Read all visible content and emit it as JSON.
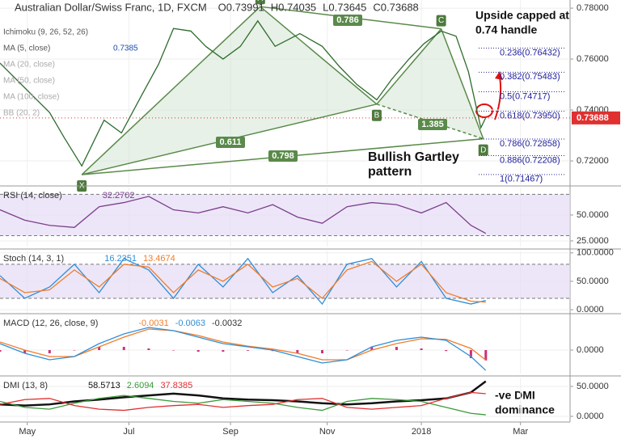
{
  "chart_data": [
    {
      "type": "line",
      "title": "Australian Dollar/Swiss Franc, 1D, FXCM",
      "ohlc": [
        "O0.73991",
        "H0.74035",
        "L0.73645",
        "C0.73688"
      ],
      "indicators": [
        "Ichimoku (9, 26, 52, 26)",
        "MA (5, close)",
        "0.7385",
        "MA (20, close)",
        "MA (50, close)",
        "MA (100, close)",
        "BB (20, 2)"
      ],
      "xlim": [
        0,
        230
      ],
      "xticks": [
        {
          "value": 11,
          "label": "May"
        },
        {
          "value": 52,
          "label": "Jul"
        },
        {
          "value": 93,
          "label": "Sep"
        },
        {
          "value": 132,
          "label": "Nov"
        },
        {
          "value": 170,
          "label": "2018"
        },
        {
          "value": 210,
          "label": "Mar"
        }
      ],
      "ylim": [
        0.7108,
        0.7832
      ],
      "yticks": [
        {
          "value": 0.72,
          "label": "0.72000"
        },
        {
          "value": 0.74,
          "label": "0.74000"
        },
        {
          "value": 0.76,
          "label": "0.76000"
        },
        {
          "value": 0.78,
          "label": "0.78000"
        }
      ],
      "x": [
        0,
        10,
        20,
        26,
        33,
        42,
        49,
        57,
        64,
        70,
        77,
        83,
        90,
        97,
        104,
        111,
        121,
        130,
        137,
        144,
        152,
        158,
        165,
        171,
        178,
        184,
        189,
        194,
        196
      ],
      "series": [
        {
          "color": "#2e6b2e",
          "values": [
            0.7584,
            0.7487,
            0.739,
            0.729,
            0.718,
            0.736,
            0.731,
            0.7455,
            0.758,
            0.772,
            0.771,
            0.765,
            0.76,
            0.765,
            0.775,
            0.765,
            0.77,
            0.765,
            0.757,
            0.75,
            0.744,
            0.752,
            0.76,
            0.766,
            0.771,
            0.769,
            0.755,
            0.733,
            0.737
          ]
        }
      ],
      "pattern": {
        "labels": [
          "X",
          "A",
          "B",
          "C",
          "D"
        ],
        "x": [
          33,
          105,
          152,
          178,
          195
        ],
        "y": [
          0.7146,
          0.7806,
          0.7423,
          0.7719,
          0.7287
        ]
      },
      "ratio_labels": [
        "0.611",
        "0.798",
        "1.385",
        "0.786"
      ],
      "fib_levels": [
        {
          "value": 0.76432,
          "label": "0.236(0.76432)"
        },
        {
          "value": 0.75483,
          "label": "0.382(0.75483)"
        },
        {
          "value": 0.74717,
          "label": "0.5(0.74717)"
        },
        {
          "value": 0.7395,
          "label": "0.618(0.73950)"
        },
        {
          "value": 0.72858,
          "label": "0.786(0.72858)"
        },
        {
          "value": 0.72208,
          "label": "0.886(0.72208)"
        },
        {
          "value": 0.71467,
          "label": "1(0.71467)"
        }
      ],
      "last": {
        "value": 0.73688,
        "label": "0.73688"
      },
      "annotations": [
        [
          "Upside capped at",
          "0.74 handle"
        ],
        [
          "Bullish Gartley",
          "pattern"
        ],
        [
          "-ve DMI",
          "dominance"
        ]
      ]
    },
    {
      "type": "line",
      "title": "RSI (14, close)",
      "readouts": [
        "32.2702"
      ],
      "ylim": [
        19.5,
        76.5
      ],
      "yticks": [
        {
          "value": 25,
          "label": "25.0000"
        },
        {
          "value": 50,
          "label": "50.0000"
        }
      ],
      "band": [
        30,
        70
      ],
      "x": [
        0,
        10,
        20,
        30,
        40,
        50,
        60,
        70,
        80,
        90,
        100,
        110,
        120,
        130,
        140,
        150,
        160,
        170,
        180,
        190,
        196
      ],
      "series": [
        {
          "color": "#7b3f8c",
          "values": [
            55,
            45,
            40,
            38,
            58,
            62,
            68,
            55,
            52,
            58,
            52,
            60,
            48,
            42,
            58,
            62,
            60,
            52,
            62,
            40,
            32.27
          ]
        }
      ]
    },
    {
      "type": "line",
      "title": "Stoch (14, 3, 1)",
      "readouts": [
        "16.2351",
        "13.4674"
      ],
      "ylim": [
        -7,
        104
      ],
      "yticks": [
        {
          "value": 0,
          "label": "0.0000"
        },
        {
          "value": 50,
          "label": "50.0000"
        },
        {
          "value": 100,
          "label": "100.0000"
        }
      ],
      "band": [
        20,
        80
      ],
      "x": [
        0,
        10,
        20,
        30,
        40,
        50,
        60,
        70,
        80,
        90,
        100,
        110,
        120,
        130,
        140,
        150,
        160,
        170,
        180,
        190,
        196
      ],
      "series": [
        {
          "color": "#2f8fd8",
          "values": [
            60,
            20,
            40,
            80,
            30,
            90,
            70,
            20,
            80,
            40,
            90,
            30,
            60,
            10,
            80,
            90,
            40,
            85,
            20,
            10,
            16.2351
          ]
        },
        {
          "color": "#f07d2a",
          "values": [
            55,
            30,
            35,
            70,
            40,
            80,
            75,
            30,
            70,
            50,
            80,
            40,
            55,
            20,
            70,
            85,
            50,
            80,
            30,
            15,
            13.4674
          ]
        }
      ]
    },
    {
      "type": "line",
      "title": "MACD (12, 26, close, 9)",
      "readouts": [
        "-0.0031",
        "-0.0063",
        "-0.0032"
      ],
      "ylim": [
        -0.00725,
        0.01075
      ],
      "yticks": [
        {
          "value": 0,
          "label": "0.0000"
        }
      ],
      "x": [
        0,
        10,
        20,
        30,
        40,
        50,
        60,
        70,
        80,
        90,
        100,
        110,
        120,
        130,
        140,
        150,
        160,
        170,
        180,
        190,
        196
      ],
      "histogram": {
        "color": "#d0307a",
        "values": [
          -0.0005,
          -0.001,
          -0.001,
          0,
          0.001,
          0.001,
          0.0005,
          0,
          -0.0005,
          -0.0005,
          -0.0002,
          -0.0003,
          -0.001,
          -0.001,
          0,
          0.001,
          0.001,
          0.0005,
          -0.0003,
          -0.0025,
          -0.0032
        ]
      },
      "series": [
        {
          "color": "#f07d2a",
          "values": [
            0.0025,
            0,
            -0.002,
            -0.002,
            0.001,
            0.004,
            0.0065,
            0.006,
            0.0045,
            0.0025,
            0.0012,
            0.0003,
            -0.001,
            -0.003,
            -0.003,
            0,
            0.002,
            0.0035,
            0.0033,
            0.0005,
            -0.0031
          ]
        },
        {
          "color": "#2f8fd8",
          "values": [
            0.002,
            -0.001,
            -0.003,
            -0.002,
            0.002,
            0.005,
            0.007,
            0.006,
            0.004,
            0.002,
            0.001,
            0,
            -0.002,
            -0.004,
            -0.003,
            0.001,
            0.003,
            0.004,
            0.003,
            -0.002,
            -0.0063
          ]
        }
      ]
    },
    {
      "type": "line",
      "title": "DMI (13, 8)",
      "readouts": [
        "58.5713",
        "2.6094",
        "37.8385"
      ],
      "ylim": [
        -6.8,
        64.9
      ],
      "yticks": [
        {
          "value": 0,
          "label": "0.0000"
        },
        {
          "value": 50,
          "label": "50.0000"
        }
      ],
      "x": [
        0,
        10,
        20,
        30,
        40,
        50,
        60,
        70,
        80,
        90,
        100,
        110,
        120,
        130,
        140,
        150,
        160,
        170,
        180,
        190,
        196
      ],
      "series": [
        {
          "color": "#111111",
          "width": 2.5,
          "values": [
            20,
            18,
            20,
            25,
            28,
            32,
            35,
            38,
            35,
            30,
            28,
            27,
            25,
            22,
            20,
            22,
            25,
            27,
            30,
            40,
            58.5713
          ]
        },
        {
          "color": "#3a9a3a",
          "values": [
            25,
            15,
            12,
            22,
            30,
            35,
            30,
            25,
            22,
            28,
            25,
            22,
            15,
            10,
            25,
            30,
            28,
            25,
            15,
            5,
            2.6094
          ]
        },
        {
          "color": "#e03030",
          "values": [
            20,
            28,
            30,
            18,
            12,
            10,
            15,
            18,
            20,
            15,
            18,
            20,
            28,
            30,
            15,
            12,
            15,
            18,
            30,
            40,
            37.8385
          ]
        }
      ]
    }
  ]
}
